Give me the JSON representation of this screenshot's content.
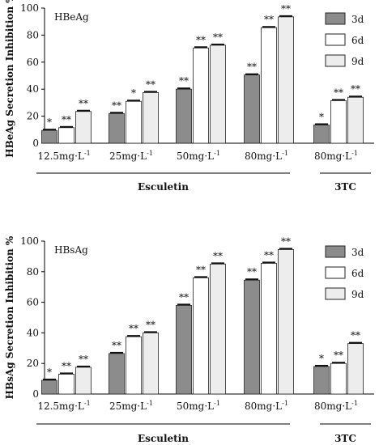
{
  "chart_data": [
    {
      "type": "bar",
      "title": "HBeAg",
      "ylabel": "HBeAg Secretion Inhibition %",
      "ylim": [
        0,
        100
      ],
      "yticks": [
        "0",
        "20",
        "40",
        "60",
        "80",
        "100"
      ],
      "categories": [
        {
          "base": "12.5mg·L",
          "sup": "-1"
        },
        {
          "base": "25mg·L",
          "sup": "-1"
        },
        {
          "base": "50mg·L",
          "sup": "-1"
        },
        {
          "base": "80mg·L",
          "sup": "-1"
        },
        {
          "base": "80mg·L",
          "sup": "-1"
        }
      ],
      "groups": [
        {
          "label": "Esculetin",
          "categories": [
            0,
            1,
            2,
            3
          ]
        },
        {
          "label": "3TC",
          "categories": [
            4
          ]
        }
      ],
      "series": [
        {
          "name": "3d",
          "color": "#8c8c8c",
          "values": [
            9.5,
            22,
            40,
            50.5,
            13.5
          ],
          "sig": [
            "*",
            "**",
            "**",
            "**",
            "*"
          ]
        },
        {
          "name": "6d",
          "color": "#ffffff",
          "values": [
            11.5,
            31,
            70.5,
            85.5,
            31.5
          ],
          "sig": [
            "**",
            "*",
            "**",
            "**",
            "**"
          ]
        },
        {
          "name": "9d",
          "color": "#ededed",
          "values": [
            23.5,
            37.5,
            72.5,
            93.5,
            34
          ],
          "sig": [
            "**",
            "**",
            "**",
            "**",
            "**"
          ]
        }
      ],
      "legend_position": "top-right",
      "grid": false
    },
    {
      "type": "bar",
      "title": "HBsAg",
      "ylabel": "HBsAg Secretion Inhibition %",
      "ylim": [
        0,
        100
      ],
      "yticks": [
        "0",
        "20",
        "40",
        "60",
        "80",
        "100"
      ],
      "categories": [
        {
          "base": "12.5mg·L",
          "sup": "-1"
        },
        {
          "base": "25mg·L",
          "sup": "-1"
        },
        {
          "base": "50mg·L",
          "sup": "-1"
        },
        {
          "base": "80mg·L",
          "sup": "-1"
        },
        {
          "base": "80mg·L",
          "sup": "-1"
        }
      ],
      "groups": [
        {
          "label": "Esculetin",
          "categories": [
            0,
            1,
            2,
            3
          ]
        },
        {
          "label": "3TC",
          "categories": [
            4
          ]
        }
      ],
      "series": [
        {
          "name": "3d",
          "color": "#8c8c8c",
          "values": [
            9,
            26.5,
            58,
            74.5,
            18
          ],
          "sig": [
            "*",
            "**",
            "**",
            "**",
            "*"
          ]
        },
        {
          "name": "6d",
          "color": "#ffffff",
          "values": [
            13,
            37.5,
            76,
            85.5,
            20
          ],
          "sig": [
            "**",
            "**",
            "**",
            "**",
            "**"
          ]
        },
        {
          "name": "9d",
          "color": "#ededed",
          "values": [
            17.5,
            40,
            85,
            94.5,
            33
          ],
          "sig": [
            "**",
            "**",
            "**",
            "**",
            "**"
          ]
        }
      ],
      "legend_position": "top-right",
      "grid": false
    }
  ]
}
